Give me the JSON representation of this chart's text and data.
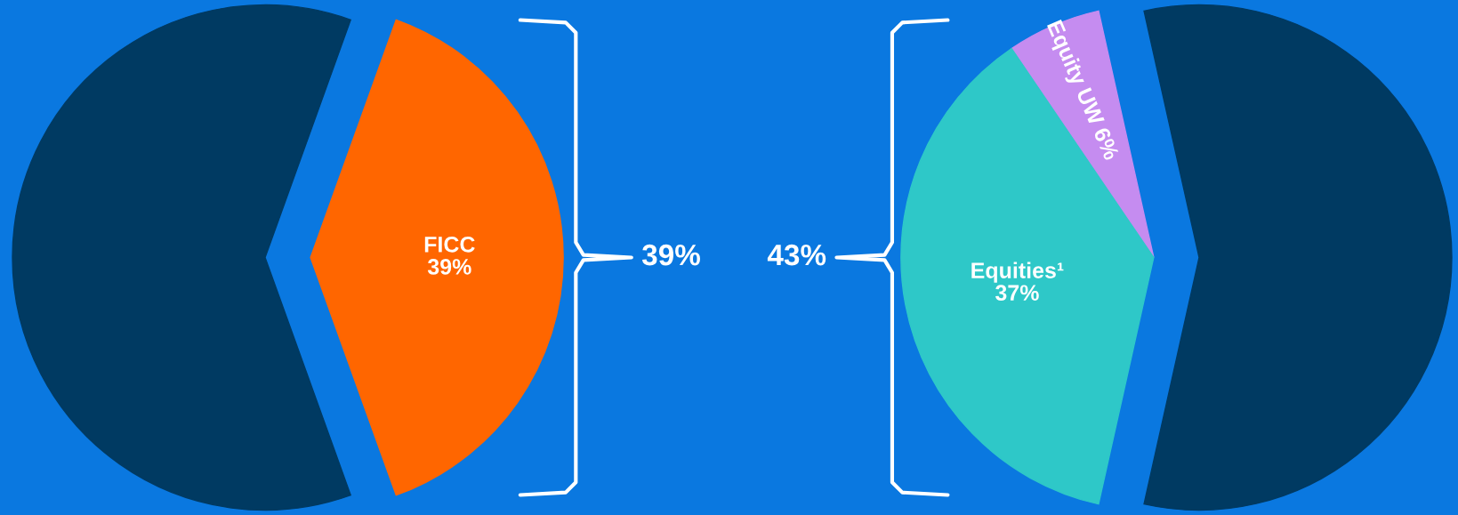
{
  "chart_data": [
    {
      "type": "pie",
      "categories": [
        "FICC",
        null
      ],
      "values": [
        39,
        61
      ],
      "colors": [
        "#ff6600",
        "#003a62"
      ],
      "value_labels": [
        "39%",
        null
      ],
      "annotations": [
        "39%"
      ]
    },
    {
      "type": "pie",
      "categories": [
        "Equity UW",
        "Equities¹",
        null
      ],
      "values": [
        6,
        37,
        57
      ],
      "colors": [
        "#c58cf0",
        "#2ec8c8",
        "#003a62"
      ],
      "value_labels": [
        "6%",
        "37%",
        null
      ],
      "annotations": [
        "43%"
      ]
    }
  ]
}
